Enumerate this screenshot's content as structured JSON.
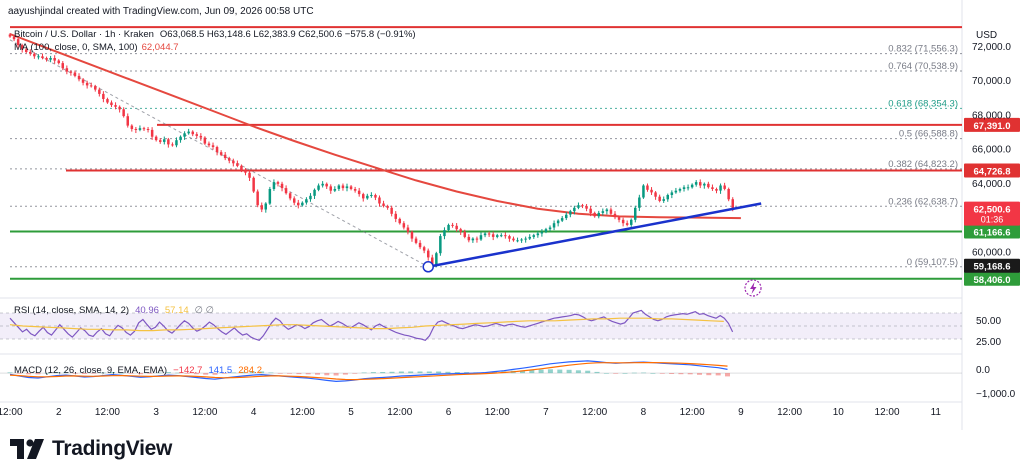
{
  "header": {
    "credit": "aayushjindal created with TradingView.com, Jun 09, 2026 00:58 UTC"
  },
  "legend": {
    "symbol": "Bitcoin / U.S. Dollar · 1h · Kraken",
    "ohlc": "O63,068.5 H63,148.6 L62,383.9 C62,500.6 −575.8 (−0.91%)",
    "ma_label": "MA (100, close, 0, SMA, 100)",
    "ma_value": "62,044.7"
  },
  "rsi": {
    "label": "RSI (14, close, SMA, 14, 2)",
    "value": "40.96",
    "sma_value": "57.14",
    "extra": "∅ ∅",
    "axis": [
      "50.00",
      "25.00"
    ]
  },
  "macd": {
    "label": "MACD (12, 26, close, 9, EMA, EMA)",
    "v1": "−142.7",
    "v2": "141.5",
    "v3": "284.2",
    "axis": [
      "0.0",
      "−1,000.0"
    ]
  },
  "brand": {
    "name": "TradingView"
  },
  "chart_data": {
    "type": "candlestick",
    "currency": "USD",
    "price_range": [
      57400,
      73400
    ],
    "price_ticks": [
      72000,
      70000,
      68000,
      66000,
      64000,
      62000,
      60000
    ],
    "price_tick_labels": [
      "72,000.0",
      "70,000.0",
      "68,000.0",
      "66,000.0",
      "64,000.0",
      "62,000.0",
      "60,000.0"
    ],
    "time_range": [
      0,
      232
    ],
    "time_labels": [
      {
        "t": 0,
        "label": "12:00"
      },
      {
        "t": 12,
        "label": "2"
      },
      {
        "t": 24,
        "label": "12:00"
      },
      {
        "t": 36,
        "label": "3"
      },
      {
        "t": 48,
        "label": "12:00"
      },
      {
        "t": 60,
        "label": "4"
      },
      {
        "t": 72,
        "label": "12:00"
      },
      {
        "t": 84,
        "label": "5"
      },
      {
        "t": 96,
        "label": "12:00"
      },
      {
        "t": 108,
        "label": "6"
      },
      {
        "t": 120,
        "label": "12:00"
      },
      {
        "t": 132,
        "label": "7"
      },
      {
        "t": 144,
        "label": "12:00"
      },
      {
        "t": 156,
        "label": "8"
      },
      {
        "t": 168,
        "label": "12:00"
      },
      {
        "t": 180,
        "label": "9"
      },
      {
        "t": 192,
        "label": "12:00"
      },
      {
        "t": 204,
        "label": "10"
      },
      {
        "t": 216,
        "label": "12:00"
      },
      {
        "t": 228,
        "label": "11"
      }
    ],
    "closes": [
      72550,
      72400,
      72050,
      71800,
      71650,
      71550,
      71400,
      71400,
      71300,
      71200,
      71300,
      71150,
      71000,
      70700,
      70500,
      70450,
      70250,
      70050,
      69850,
      69700,
      69650,
      69450,
      69200,
      68900,
      68700,
      68550,
      68450,
      68300,
      67900,
      67350,
      67150,
      67100,
      67200,
      67150,
      67100,
      66700,
      66500,
      66400,
      66550,
      66250,
      66200,
      66500,
      66700,
      66900,
      67000,
      66850,
      66750,
      66650,
      66300,
      66200,
      66100,
      65800,
      65650,
      65450,
      65300,
      65150,
      65000,
      64750,
      64600,
      64300,
      63500,
      62700,
      62450,
      62800,
      63650,
      64050,
      63950,
      63700,
      63400,
      63100,
      62850,
      62700,
      62850,
      63050,
      63250,
      63600,
      63850,
      63950,
      63800,
      63550,
      63650,
      63850,
      63700,
      63800,
      63650,
      63550,
      63350,
      63100,
      63250,
      63300,
      63150,
      62800,
      62650,
      62550,
      62200,
      61900,
      61650,
      61400,
      61150,
      60750,
      60500,
      60250,
      60050,
      59650,
      59200,
      59900,
      60900,
      61250,
      61550,
      61500,
      61300,
      61150,
      60850,
      60650,
      60750,
      60700,
      60950,
      61050,
      61000,
      60850,
      60950,
      60950,
      60900,
      60750,
      60650,
      60650,
      60700,
      60750,
      60850,
      60950,
      61050,
      61150,
      61300,
      61400,
      61650,
      61800,
      61950,
      62150,
      62350,
      62550,
      62700,
      62650,
      62500,
      62250,
      62050,
      62250,
      62350,
      62450,
      62200,
      62000,
      61850,
      61650,
      61550,
      61850,
      62550,
      63150,
      63850,
      63600,
      63450,
      63200,
      62950,
      63050,
      63300,
      63450,
      63550,
      63650,
      63750,
      63750,
      63900,
      64050,
      63850,
      63950,
      63750,
      63650,
      63550,
      63850,
      63650,
      63050,
      62500
    ],
    "series": [
      {
        "name": "MA (100, close, 0, SMA, 100)",
        "color": "#e5483f",
        "x": [
          0,
          10,
          20,
          30,
          40,
          50,
          60,
          70,
          80,
          90,
          100,
          110,
          120,
          130,
          140,
          150,
          160,
          170,
          180
        ],
        "y": [
          72700,
          71800,
          70900,
          70000,
          69100,
          68200,
          67300,
          66450,
          65650,
          64900,
          64150,
          63500,
          62950,
          62500,
          62200,
          62050,
          62000,
          61980,
          61950
        ]
      }
    ],
    "fib_levels": [
      {
        "ratio": "0.832",
        "price": 71556.3,
        "label": "0.832 (71,556.3)"
      },
      {
        "ratio": "0.764",
        "price": 70538.9,
        "label": "0.764 (70,538.9)"
      },
      {
        "ratio": "0.618",
        "price": 68354.3,
        "label": "0.618 (68,354.3)",
        "color": "#1f9c88"
      },
      {
        "ratio": "0.5",
        "price": 66588.8,
        "label": "0.5 (66,588.8)"
      },
      {
        "ratio": "0.382",
        "price": 64823.2,
        "label": "0.382 (64,823.2)"
      },
      {
        "ratio": "0.236",
        "price": 62638.7,
        "label": "0.236 (62,638.7)"
      },
      {
        "ratio": "0",
        "price": 59107.5,
        "label": "0 (59,107.5)"
      }
    ],
    "horizontal_lines": [
      {
        "price": 73100,
        "color": "#e03232"
      },
      {
        "price": 67391.0,
        "label": "67,391.0",
        "color": "#e03232"
      },
      {
        "price": 64726.8,
        "label": "64,726.8",
        "color": "#e03232"
      },
      {
        "price": 61166.6,
        "label": "61,166.6",
        "color": "#2e9c3a"
      },
      {
        "price": 58406.0,
        "label": "58,406.0",
        "color": "#2e9c3a"
      }
    ],
    "price_tags": [
      {
        "price": 62500.6,
        "label": "62,500.6",
        "sublabel": "01:36",
        "color": "#f23645"
      },
      {
        "price": 59168.6,
        "label": "59,168.6",
        "color": "#1a1a1a"
      }
    ],
    "trendline": {
      "from": {
        "t": 103,
        "price": 59107.5
      },
      "to": {
        "t": 185,
        "price": 62800
      },
      "color": "#1a32cc"
    },
    "rsi_values": [
      62,
      55,
      48,
      41,
      45,
      38,
      35,
      42,
      48,
      40,
      36,
      44,
      52,
      45,
      38,
      33,
      40,
      47,
      43,
      36,
      34,
      41,
      46,
      38,
      35,
      44,
      51,
      47,
      40,
      36,
      42,
      55,
      60,
      52,
      45,
      48,
      56,
      50,
      43,
      39,
      45,
      52,
      58,
      54,
      47,
      42,
      45,
      50,
      56,
      52,
      46,
      41,
      37,
      42,
      47,
      41,
      36,
      38,
      33,
      30,
      28,
      35,
      45,
      55,
      62,
      58,
      50,
      45,
      48,
      52,
      50,
      46,
      49,
      55,
      58,
      60,
      55,
      50,
      53,
      57,
      54,
      50,
      47,
      51,
      55,
      52,
      48,
      44,
      50,
      53,
      49,
      46,
      43,
      40,
      38,
      36,
      35,
      33,
      31,
      30,
      28,
      35,
      48,
      56,
      58,
      55,
      52,
      50,
      47,
      46,
      48,
      50,
      52,
      51,
      49,
      50,
      52,
      54,
      52,
      50,
      52,
      53,
      51,
      49,
      48,
      50,
      52,
      54,
      56,
      58,
      60,
      62,
      63,
      64,
      65,
      66,
      68,
      67,
      64,
      60,
      58,
      60,
      62,
      64,
      60,
      57,
      55,
      53,
      55,
      62,
      70,
      72,
      74,
      68,
      64,
      60,
      58,
      60,
      64,
      66,
      67,
      68,
      69,
      68,
      70,
      72,
      68,
      69,
      66,
      64,
      62,
      66,
      62,
      54,
      41
    ],
    "rsi_sma": [
      52,
      50,
      49,
      48,
      47,
      46,
      45,
      45,
      44,
      44,
      43,
      43,
      44,
      44,
      45,
      46,
      47,
      48,
      49,
      50,
      51,
      52,
      52,
      51,
      50,
      49,
      48,
      47,
      46,
      46,
      47,
      48,
      50,
      51,
      52,
      53,
      54,
      55,
      56,
      57,
      58,
      58,
      58,
      59,
      60,
      61,
      61,
      62,
      62,
      62,
      61,
      61,
      60,
      59,
      58,
      57
    ],
    "macd_values": [
      -50,
      -120,
      -180,
      -200,
      -150,
      -100,
      -80,
      -120,
      -160,
      -140,
      -100,
      -60,
      -90,
      -130,
      -170,
      -150,
      -110,
      -80,
      -100,
      -140,
      -180,
      -220,
      -250,
      -200,
      -160,
      -120,
      -80,
      -60,
      -90,
      -120,
      -150,
      -180,
      -210,
      -250,
      -300,
      -340,
      -320,
      -280,
      -230,
      -200,
      -180,
      -150,
      -120,
      -100,
      -80,
      -60,
      -40,
      -30,
      -20,
      -10,
      0,
      20,
      60,
      100,
      150,
      200,
      260,
      320,
      380,
      420,
      460,
      480,
      500,
      470,
      430,
      400,
      420,
      440,
      450,
      430,
      400,
      380,
      360,
      340,
      300,
      260,
      220,
      150
    ],
    "macd_signal": [
      -80,
      -100,
      -130,
      -150,
      -150,
      -140,
      -120,
      -115,
      -125,
      -130,
      -120,
      -105,
      -100,
      -110,
      -125,
      -135,
      -130,
      -120,
      -115,
      -120,
      -135,
      -155,
      -180,
      -190,
      -185,
      -170,
      -150,
      -130,
      -115,
      -115,
      -125,
      -140,
      -160,
      -185,
      -210,
      -240,
      -260,
      -265,
      -255,
      -240,
      -225,
      -205,
      -185,
      -165,
      -145,
      -125,
      -105,
      -85,
      -65,
      -50,
      -35,
      -20,
      0,
      25,
      55,
      90,
      130,
      175,
      225,
      275,
      325,
      365,
      400,
      420,
      425,
      420,
      420,
      425,
      430,
      430,
      425,
      415,
      405,
      390,
      370,
      345,
      315,
      285
    ]
  }
}
